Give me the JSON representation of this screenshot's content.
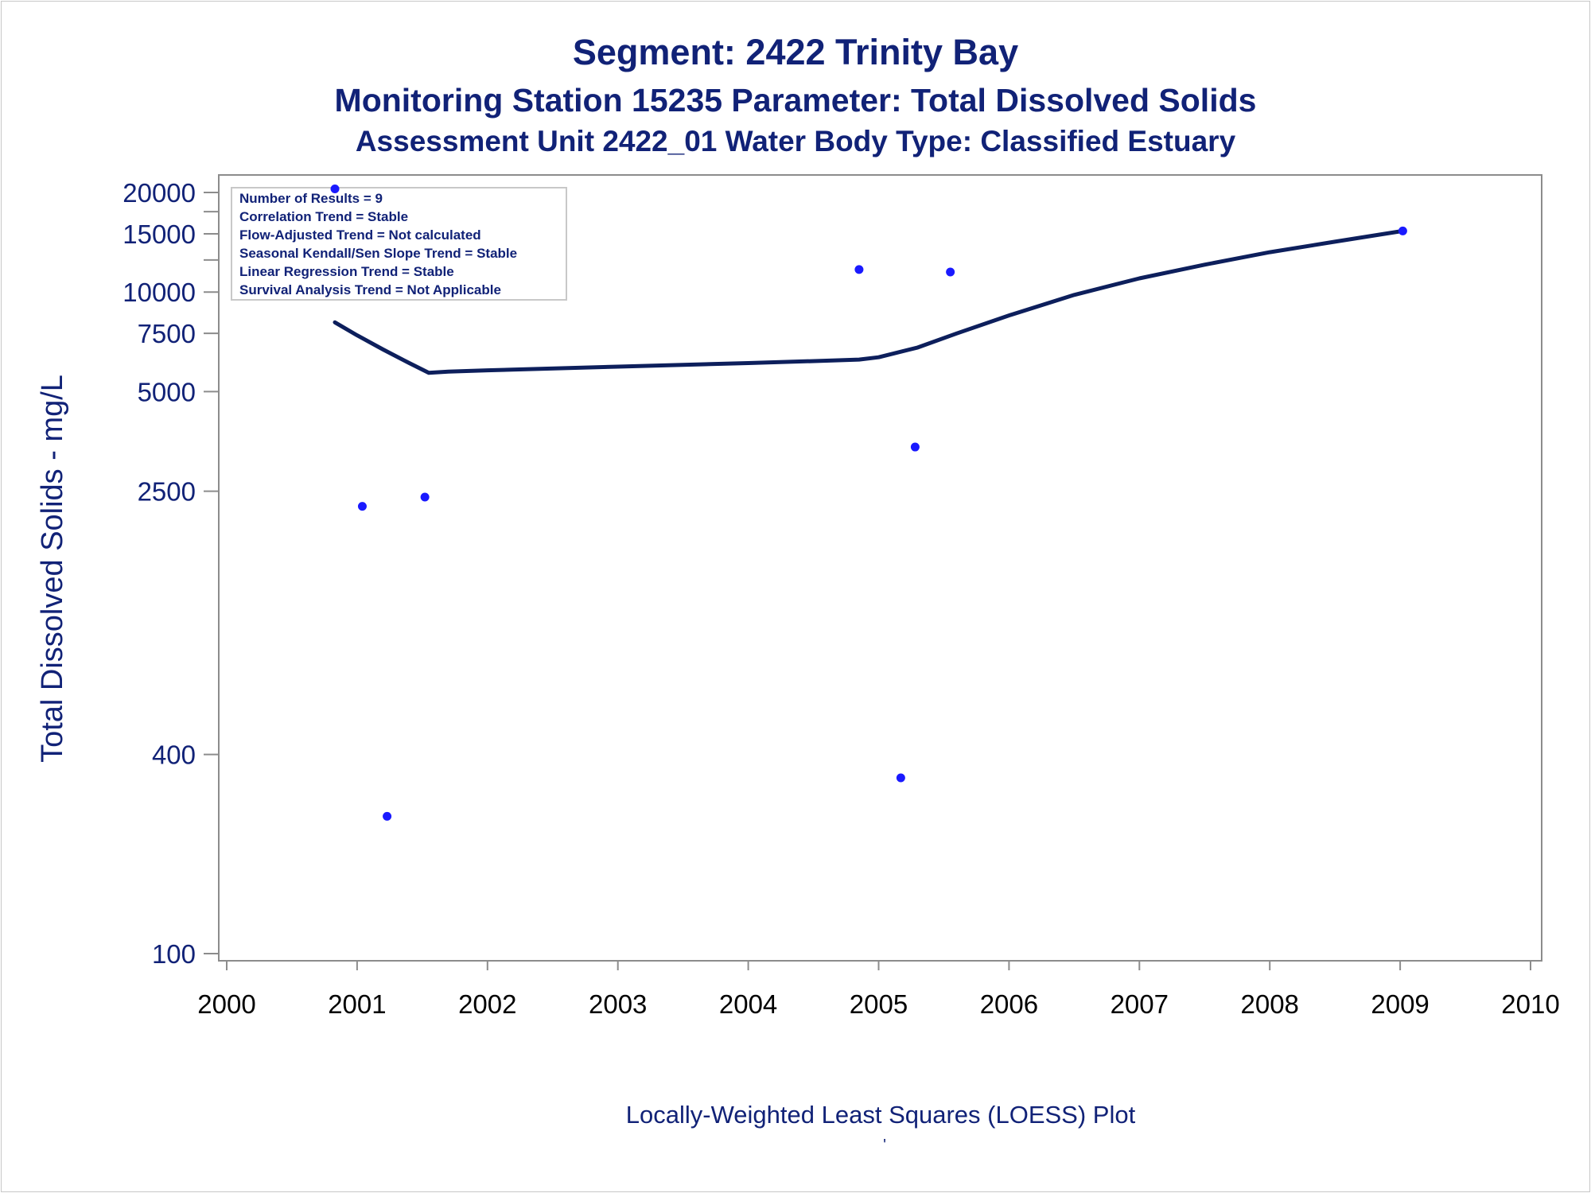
{
  "chart_data": {
    "type": "scatter",
    "title": "Segment: 2422  Trinity Bay",
    "subtitle_lines": [
      "Monitoring Station 15235 Parameter: Total Dissolved Solids",
      "Assessment Unit 2422_01   Water Body Type: Classified Estuary"
    ],
    "xlabel": "Locally-Weighted Least Squares (LOESS) Plot",
    "ylabel": "Total Dissolved Solids - mg/L",
    "y_scale": "log",
    "xlim": [
      2000,
      2010
    ],
    "ylim": [
      100,
      20000
    ],
    "x_ticks": [
      "2000",
      "2001",
      "2002",
      "2003",
      "2004",
      "2005",
      "2006",
      "2007",
      "2008",
      "2009",
      "2010"
    ],
    "y_ticks": [
      "100",
      "400",
      "2500",
      "5000",
      "7500",
      "10000",
      "15000",
      "20000"
    ],
    "y_tick_values": [
      100,
      400,
      2500,
      5000,
      7500,
      10000,
      15000,
      20000
    ],
    "series": [
      {
        "kind": "points",
        "x": [
          2000.83,
          2001.04,
          2001.23,
          2001.52,
          2004.85,
          2005.17,
          2005.28,
          2005.55,
          2009.02
        ],
        "y": [
          20500,
          2250,
          260,
          2400,
          11700,
          340,
          3400,
          11500,
          15300
        ]
      },
      {
        "kind": "loess-line",
        "x": [
          2000.83,
          2001.0,
          2001.2,
          2001.4,
          2001.55,
          2001.7,
          2002.0,
          2003.0,
          2004.0,
          2004.6,
          2004.85,
          2005.0,
          2005.3,
          2005.6,
          2006.0,
          2006.5,
          2007.0,
          2007.5,
          2008.0,
          2008.5,
          2009.02
        ],
        "y": [
          8100,
          7400,
          6700,
          6100,
          5700,
          5750,
          5800,
          5950,
          6100,
          6200,
          6250,
          6350,
          6800,
          7500,
          8500,
          9800,
          11000,
          12100,
          13200,
          14200,
          15300
        ]
      }
    ],
    "legend": {
      "placement": "top-left",
      "lines": [
        "Number of Results = 9",
        "Correlation Trend = Stable",
        "Flow-Adjusted Trend = Not calculated",
        "Seasonal Kendall/Sen Slope Trend = Stable",
        "Linear Regression Trend = Stable",
        "Survival Analysis Trend = Not Applicable"
      ]
    },
    "grid": false,
    "footnote": "'"
  },
  "colors": {
    "text": "#112277",
    "line": "#0d1f5c",
    "points": "#1a1aff",
    "axis": "#8c8c8c",
    "legend_border": "#c8c8c8"
  }
}
